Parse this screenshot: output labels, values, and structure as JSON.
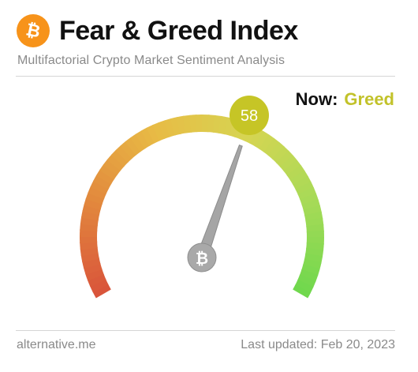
{
  "header": {
    "title": "Fear & Greed Index",
    "subtitle": "Multifactorial Crypto Market Sentiment Analysis",
    "logo_icon": "bitcoin-icon",
    "logo_color": "#f7931a"
  },
  "status": {
    "now_label": "Now:",
    "now_value": "Greed",
    "now_color": "#c2c22a"
  },
  "gauge": {
    "value": 58,
    "min": 0,
    "max": 100,
    "badge_color": "#c6c526",
    "center_icon": "bitcoin-icon",
    "colors": [
      "#d9533b",
      "#e2883d",
      "#e8bb45",
      "#d6d552",
      "#a7da57",
      "#6ed84d"
    ]
  },
  "footer": {
    "source": "alternative.me",
    "last_updated": "Last updated: Feb 20, 2023"
  }
}
